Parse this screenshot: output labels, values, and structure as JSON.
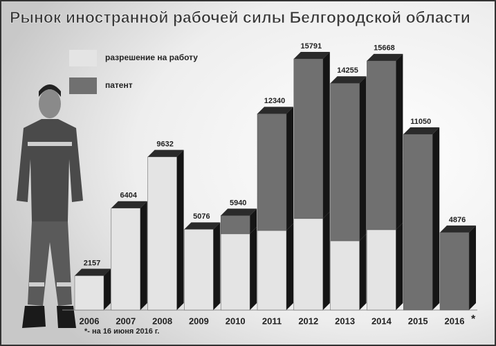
{
  "chart_data": {
    "type": "stacked-bar-3d",
    "title": "Рынок иностранной рабочей силы Белгородской области",
    "categories": [
      "2006",
      "2007",
      "2008",
      "2009",
      "2010",
      "2011",
      "2012",
      "2013",
      "2014",
      "2015",
      "2016"
    ],
    "category_note": "*",
    "series": [
      {
        "name": "разрешение на работу",
        "color": "#e4e4e4",
        "values": [
          2157,
          6404,
          9632,
          5076,
          4790,
          5000,
          5750,
          4350,
          5050,
          0,
          0
        ]
      },
      {
        "name": "патент",
        "color": "#707070",
        "values": [
          0,
          0,
          0,
          0,
          1150,
          7340,
          10041,
          9905,
          10618,
          11050,
          4876
        ]
      }
    ],
    "totals": [
      2157,
      6404,
      9632,
      5076,
      5940,
      12340,
      15791,
      14255,
      15668,
      11050,
      4876
    ],
    "footnote": "*- на 16 июня 2016 г."
  }
}
